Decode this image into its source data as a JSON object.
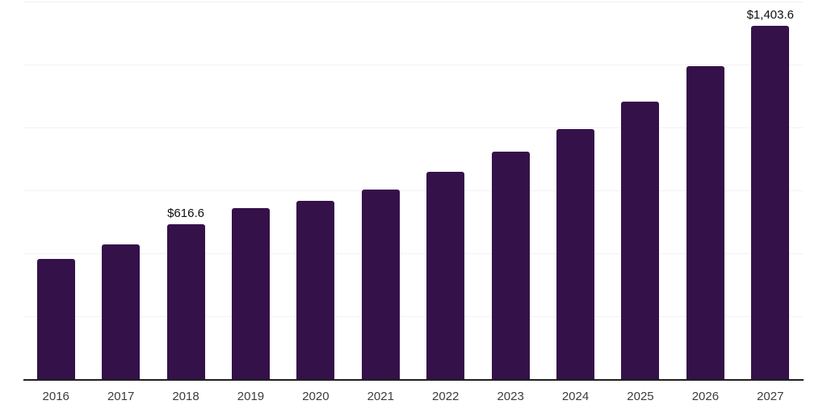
{
  "chart_data": {
    "type": "bar",
    "categories": [
      "2016",
      "2017",
      "2018",
      "2019",
      "2020",
      "2021",
      "2022",
      "2023",
      "2024",
      "2025",
      "2026",
      "2027"
    ],
    "values": [
      477.0,
      534.1,
      616.6,
      678.8,
      708.2,
      753.9,
      822.8,
      902.9,
      992.8,
      1102.6,
      1244.9,
      1403.6
    ],
    "value_labels": [
      "",
      "",
      "$616.6",
      "",
      "",
      "",
      "",
      "",
      "",
      "",
      "",
      "$1,403.6"
    ],
    "ylim": [
      0,
      1500
    ],
    "gridline_values": [
      250,
      500,
      750,
      1000,
      1250,
      1500
    ],
    "grid": true,
    "legend": false,
    "colors": {
      "bar": "#35114A",
      "grid": "#F2F2F2",
      "axis": "#1F1F1F",
      "tick_label": "#3C3C3C",
      "value_label": "#0F0F0F",
      "background": "#FFFFFF"
    }
  }
}
